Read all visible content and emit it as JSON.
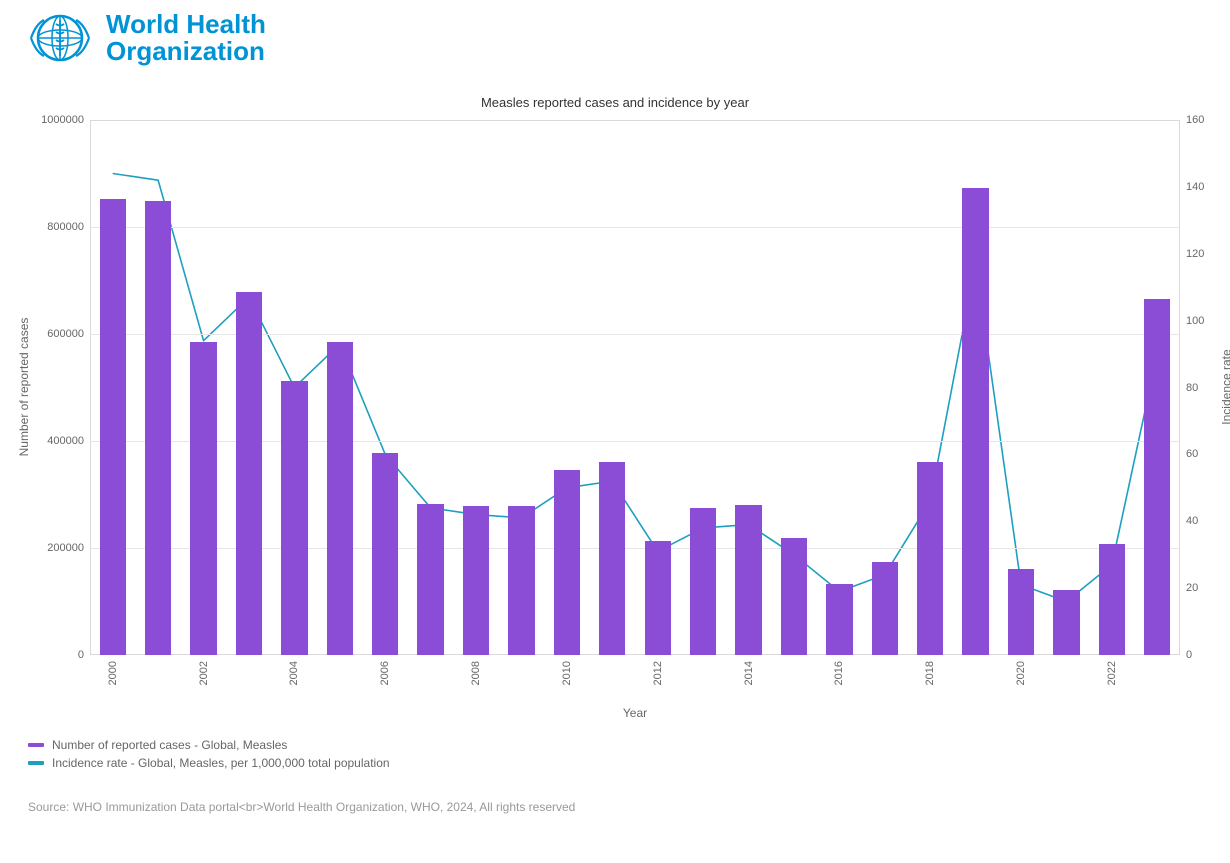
{
  "logo": {
    "line1": "World Health",
    "line2": "Organization",
    "brand_color": "#0093d5"
  },
  "chart": {
    "type": "bar+line",
    "title": "Measles reported cases and incidence by year",
    "title_fontsize": 13,
    "title_color": "#333333",
    "background_color": "#ffffff",
    "plot_border_color": "#d9d9d9",
    "grid_color": "#e6e6e6",
    "x": {
      "label": "Year",
      "categories": [
        "2000",
        "2001",
        "2002",
        "2003",
        "2004",
        "2005",
        "2006",
        "2007",
        "2008",
        "2009",
        "2010",
        "2011",
        "2012",
        "2013",
        "2014",
        "2015",
        "2016",
        "2017",
        "2018",
        "2019",
        "2020",
        "2021",
        "2022",
        "2023"
      ],
      "tick_label_every": 2,
      "tick_rotation_deg": -90,
      "tick_fontsize": 11,
      "tick_color": "#666666",
      "label_fontsize": 12
    },
    "y_left": {
      "label": "Number of reported cases",
      "min": 0,
      "max": 1000000,
      "tick_step": 200000,
      "ticks": [
        0,
        200000,
        400000,
        600000,
        800000,
        1000000
      ],
      "tick_fontsize": 11,
      "tick_color": "#666666",
      "label_fontsize": 12
    },
    "y_right": {
      "label": "Incidence rate",
      "min": 0,
      "max": 160,
      "tick_step": 20,
      "ticks": [
        0,
        20,
        40,
        60,
        80,
        100,
        120,
        140,
        160
      ],
      "tick_fontsize": 11,
      "tick_color": "#666666",
      "label_fontsize": 12
    },
    "bars": {
      "name": "Number of reported cases - Global, Measles",
      "color": "#8b4dd5",
      "width_frac": 0.58,
      "values": [
        852000,
        848000,
        585000,
        678000,
        513000,
        585000,
        378000,
        282000,
        278000,
        278000,
        345000,
        360000,
        213000,
        275000,
        280000,
        218000,
        132000,
        173000,
        360000,
        872000,
        160000,
        122000,
        208000,
        665000
      ]
    },
    "line": {
      "name": "Incidence rate - Global, Measles, per 1,000,000 total population",
      "color": "#1f9fbf",
      "stroke_width": 1.6,
      "values": [
        144,
        142,
        94,
        107,
        80,
        93,
        60,
        44,
        42,
        41,
        50,
        52,
        31,
        38,
        39,
        30,
        19,
        24,
        46,
        117,
        21,
        16,
        27,
        90
      ]
    }
  },
  "legend": {
    "fontsize": 12,
    "color": "#666666",
    "items": [
      {
        "swatch_color": "#8b4dd5",
        "label": "Number of reported cases - Global, Measles"
      },
      {
        "swatch_color": "#1f9fbf",
        "label": "Incidence rate - Global, Measles, per 1,000,000 total population"
      }
    ]
  },
  "source": {
    "text": "Source: WHO Immunization Data portal<br>World Health Organization, WHO, 2024, All rights reserved",
    "fontsize": 12,
    "color": "#999999"
  }
}
